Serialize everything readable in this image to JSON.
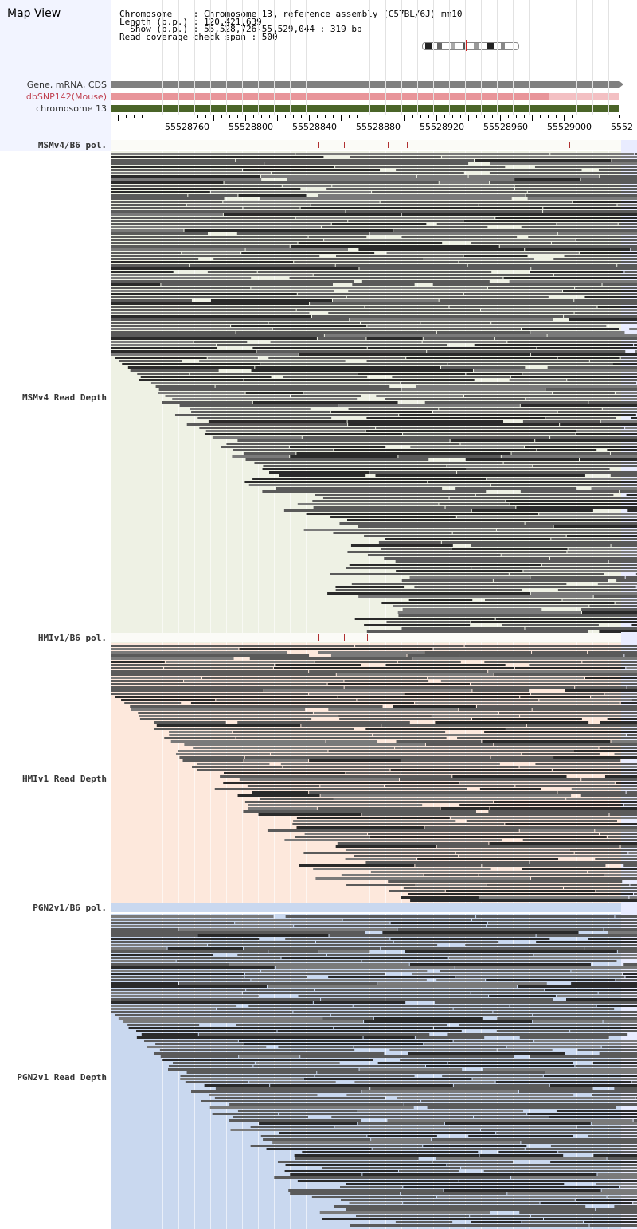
{
  "header": {
    "title": "Map View",
    "info_lines": [
      "Chromosome    : Chromosome 13, reference assembly (C57BL/6J) mm10",
      "Length (b.p.) : 120,421,639",
      "  Show (b.p.) : 55,528,726-55,529,044 : 319 bp",
      "Read coverage check span : 500"
    ]
  },
  "tracks": {
    "gene": "Gene, mRNA, CDS",
    "dbsnp": "dbSNP142(Mouse)",
    "chromosome": "chromosome 13"
  },
  "ruler": {
    "ticks": [
      "55528760",
      "55528800",
      "55528840",
      "55528880",
      "55528920",
      "55528960",
      "55529000",
      "5552"
    ]
  },
  "samples": [
    {
      "pol_label": "MSMv4/B6 pol.",
      "depth_label": "MSMv4 Read Depth",
      "bg": "#eef1e4"
    },
    {
      "pol_label": "HMIv1/B6 pol.",
      "depth_label": "HMIv1 Read Depth",
      "bg": "#fde8dc"
    },
    {
      "pol_label": "PGN2v1/B6 pol.",
      "depth_label": "PGN2v1 Read Depth",
      "bg": "#c9d8ef"
    }
  ],
  "colors": {
    "gene_bar": "#808080",
    "dbsnp_bar": "#e8959a",
    "chrom_bar": "#4a6428",
    "snp_mark": "#b03030",
    "read_dark": "#2a2a2a",
    "read_mid": "#5a5a5a",
    "read_light": "#7a7a7a"
  }
}
